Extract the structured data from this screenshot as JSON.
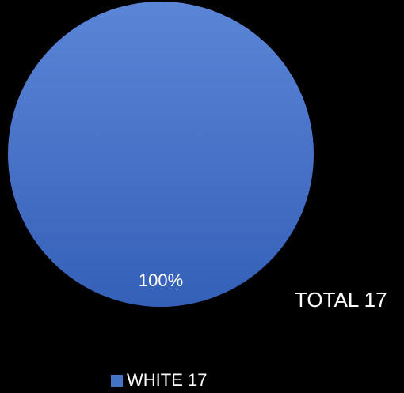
{
  "chart_data": {
    "type": "pie",
    "slices": [
      {
        "label": "WHITE 17",
        "value": 17,
        "percent_label": "100%",
        "color": "#4472c4"
      }
    ],
    "annotations": [
      "TOTAL 17"
    ],
    "legend_position": "bottom",
    "background": "#000000"
  }
}
